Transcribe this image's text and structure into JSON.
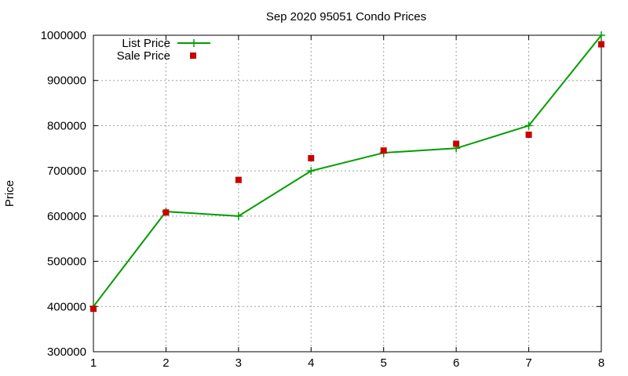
{
  "chart_data": {
    "type": "line",
    "title": "Sep 2020 95051 Condo Prices",
    "xlabel": "",
    "ylabel": "Price",
    "x": [
      1,
      2,
      3,
      4,
      5,
      6,
      7,
      8
    ],
    "xlim": [
      1,
      8
    ],
    "ylim": [
      300000,
      1000000
    ],
    "x_ticks": [
      "1",
      "2",
      "3",
      "4",
      "5",
      "6",
      "7",
      "8"
    ],
    "y_ticks": [
      "300000",
      "400000",
      "500000",
      "600000",
      "700000",
      "800000",
      "900000",
      "1000000"
    ],
    "grid": true,
    "legend_position": "top-left",
    "series": [
      {
        "name": "List Price",
        "style": "line+cross",
        "color": "#009e00",
        "values": [
          400000,
          610000,
          600000,
          700000,
          740000,
          750000,
          800000,
          1000000
        ]
      },
      {
        "name": "Sale Price",
        "style": "square-points",
        "color": "#c80000",
        "values": [
          395000,
          608000,
          680000,
          728000,
          745000,
          760000,
          780000,
          980000
        ]
      }
    ]
  }
}
